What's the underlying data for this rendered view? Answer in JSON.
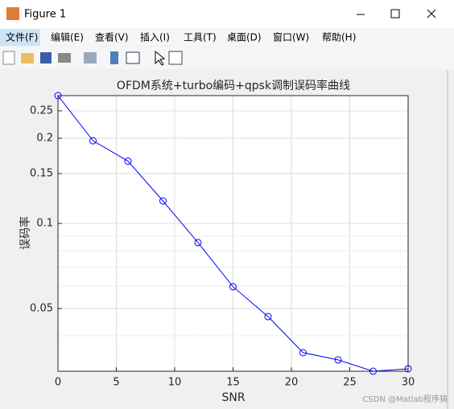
{
  "window": {
    "title": "Figure 1",
    "menu": [
      "文件(F)",
      "编辑(E)",
      "查看(V)",
      "插入(I)",
      "工具(T)",
      "桌面(D)",
      "窗口(W)",
      "帮助(H)"
    ],
    "watermark": "CSDN @Matlab程序猿"
  },
  "chart_data": {
    "type": "line",
    "title": "OFDM系统+turbo编码+qpsk调制误码率曲线",
    "x_label": "SNR",
    "y_label": "误码率",
    "x": [
      0,
      3,
      6,
      9,
      12,
      15,
      18,
      21,
      24,
      27,
      30
    ],
    "series": [
      {
        "color": "#0000ff",
        "marker": "circle",
        "values": [
          0.283,
          0.196,
          0.166,
          0.12,
          0.0855,
          0.0597,
          0.0468,
          0.0349,
          0.0329,
          0.03,
          0.0306
        ]
      }
    ],
    "xlim": [
      0,
      30
    ],
    "xticks": [
      0,
      5,
      10,
      15,
      20,
      25,
      30
    ],
    "ylim": [
      0.03,
      0.283
    ],
    "yticks": [
      0.05,
      0.1,
      0.15,
      0.2,
      0.25
    ],
    "yminorticks": [
      0.03,
      0.04,
      0.06,
      0.07,
      0.08,
      0.09,
      0.2
    ],
    "ylog": true,
    "grid": true
  }
}
